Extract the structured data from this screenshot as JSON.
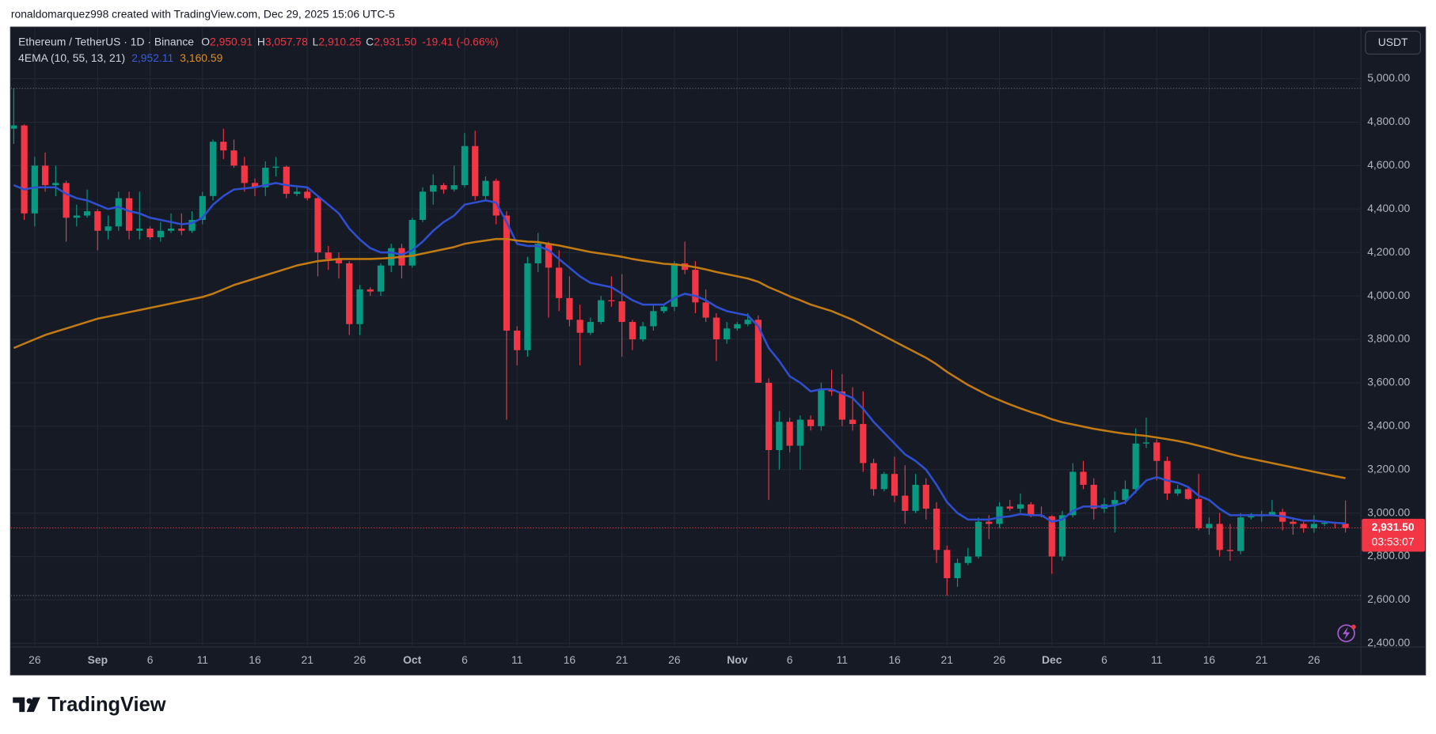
{
  "header": {
    "credit": "ronaldomarquez998 created with TradingView.com, Dec 29, 2025 15:06 UTC-5"
  },
  "legend": {
    "symbol": "Ethereum / TetherUS · 1D · Binance",
    "o_label": "O",
    "o": "2,950.91",
    "h_label": "H",
    "h": "3,057.78",
    "l_label": "L",
    "l": "2,910.25",
    "c_label": "C",
    "c": "2,931.50",
    "change": "-19.41 (-0.66%)",
    "indicator": "4EMA (10, 55, 13, 21)"
  },
  "currency": "USDT",
  "countdown": "03:53:07",
  "footer": {
    "logo": "TradingView"
  },
  "chart_data": {
    "type": "candlestick",
    "up_color": "#089981",
    "down_color": "#f23645",
    "grid": true,
    "last_price": {
      "value": 2931.5,
      "label": "2,931.50"
    },
    "ylim": [
      2383,
      5236
    ],
    "yticks": [
      {
        "value": 2400,
        "label": "2,400.00"
      },
      {
        "value": 2600,
        "label": "2,600.00"
      },
      {
        "value": 2800,
        "label": "2,800.00"
      },
      {
        "value": 3000,
        "label": "3,000.00"
      },
      {
        "value": 3200,
        "label": "3,200.00"
      },
      {
        "value": 3400,
        "label": "3,400.00"
      },
      {
        "value": 3600,
        "label": "3,600.00"
      },
      {
        "value": 3800,
        "label": "3,800.00"
      },
      {
        "value": 4000,
        "label": "4,000.00"
      },
      {
        "value": 4200,
        "label": "4,200.00"
      },
      {
        "value": 4400,
        "label": "4,400.00"
      },
      {
        "value": 4600,
        "label": "4,600.00"
      },
      {
        "value": 4800,
        "label": "4,800.00"
      },
      {
        "value": 5000,
        "label": "5,000.00"
      }
    ],
    "categories": [
      null,
      null,
      "26",
      null,
      null,
      null,
      null,
      null,
      "Sep",
      null,
      null,
      null,
      null,
      "6",
      null,
      null,
      null,
      null,
      "11",
      null,
      null,
      null,
      null,
      "16",
      null,
      null,
      null,
      null,
      "21",
      null,
      null,
      null,
      null,
      "26",
      null,
      null,
      null,
      null,
      "Oct",
      null,
      null,
      null,
      null,
      "6",
      null,
      null,
      null,
      null,
      "11",
      null,
      null,
      null,
      null,
      "16",
      null,
      null,
      null,
      null,
      "21",
      null,
      null,
      null,
      null,
      "26",
      null,
      null,
      null,
      null,
      null,
      "Nov",
      null,
      null,
      null,
      null,
      "6",
      null,
      null,
      null,
      null,
      "11",
      null,
      null,
      null,
      null,
      "16",
      null,
      null,
      null,
      null,
      "21",
      null,
      null,
      null,
      null,
      "26",
      null,
      null,
      null,
      null,
      "Dec",
      null,
      null,
      null,
      null,
      "6",
      null,
      null,
      null,
      null,
      "11",
      null,
      null,
      null,
      null,
      "16",
      null,
      null,
      null,
      null,
      "21",
      null,
      null,
      null,
      null,
      "26",
      null,
      null,
      null
    ],
    "open": [
      4770,
      4785,
      4380,
      4600,
      4510,
      4520,
      4360,
      4370,
      4390,
      4300,
      4320,
      4450,
      4300,
      4310,
      4270,
      4300,
      4310,
      4300,
      4350,
      4460,
      4710,
      4670,
      4600,
      4520,
      4500,
      4590,
      4595,
      4470,
      4480,
      4450,
      4200,
      4170,
      4150,
      3870,
      4030,
      4020,
      4140,
      4220,
      4140,
      4350,
      4480,
      4510,
      4490,
      4510,
      4690,
      4460,
      4530,
      4370,
      3840,
      3750,
      4150,
      4240,
      4130,
      3990,
      3890,
      3830,
      3880,
      3980,
      3975,
      3880,
      3800,
      3860,
      3930,
      3950,
      4150,
      4120,
      3970,
      3900,
      3800,
      3850,
      3870,
      3890,
      3600,
      3290,
      3420,
      3310,
      3430,
      3400,
      3570,
      3560,
      3430,
      3410,
      3230,
      3110,
      3180,
      3080,
      3010,
      3130,
      3020,
      2830,
      2700,
      2770,
      2800,
      2960,
      2950,
      3030,
      3020,
      3040,
      2990,
      2985,
      2800,
      2990,
      3190,
      3130,
      3020,
      3040,
      3060,
      3110,
      3320,
      3325,
      3240,
      3090,
      3110,
      3065,
      2930,
      2950,
      2830,
      2825,
      2980,
      2985,
      2990,
      3005,
      2960,
      2950,
      2930,
      2950,
      2955,
      2950.91
    ],
    "high": [
      4956,
      4790,
      4640,
      4660,
      4600,
      4530,
      4420,
      4490,
      4400,
      4370,
      4480,
      4480,
      4480,
      4320,
      4340,
      4380,
      4380,
      4390,
      4480,
      4720,
      4770,
      4720,
      4640,
      4540,
      4620,
      4640,
      4600,
      4500,
      4500,
      4460,
      4230,
      4200,
      4160,
      4050,
      4040,
      4150,
      4240,
      4240,
      4360,
      4500,
      4560,
      4520,
      4600,
      4750,
      4760,
      4550,
      4540,
      4390,
      3860,
      4180,
      4290,
      4250,
      4210,
      4090,
      3960,
      3900,
      4000,
      4090,
      4100,
      3890,
      3880,
      3960,
      3960,
      4160,
      4250,
      4160,
      4030,
      3920,
      3880,
      3880,
      3920,
      3910,
      3620,
      3470,
      3440,
      3450,
      3450,
      3600,
      3660,
      3640,
      3580,
      3560,
      3250,
      3190,
      3260,
      3220,
      3180,
      3160,
      3050,
      2850,
      2790,
      2840,
      2980,
      2990,
      3050,
      3060,
      3090,
      3050,
      3030,
      2990,
      3010,
      3230,
      3240,
      3160,
      3070,
      3100,
      3150,
      3390,
      3440,
      3340,
      3260,
      3130,
      3120,
      3180,
      2980,
      3000,
      2950,
      3000,
      3000,
      3010,
      3060,
      3020,
      2980,
      2960,
      2990,
      2960,
      2960,
      3057.78
    ],
    "low": [
      4700,
      4350,
      4320,
      4480,
      4460,
      4250,
      4320,
      4360,
      4210,
      4260,
      4300,
      4260,
      4260,
      4260,
      4250,
      4290,
      4280,
      4290,
      4330,
      4440,
      4630,
      4590,
      4480,
      4460,
      4460,
      4550,
      4450,
      4460,
      4440,
      4090,
      4120,
      4080,
      3820,
      3820,
      4000,
      4000,
      4110,
      4080,
      4130,
      4340,
      4420,
      4470,
      4480,
      4500,
      4440,
      4440,
      4330,
      3430,
      3680,
      3720,
      4110,
      3900,
      3930,
      3860,
      3680,
      3820,
      3870,
      3950,
      3720,
      3750,
      3790,
      3840,
      3920,
      3930,
      4100,
      3920,
      3880,
      3700,
      3780,
      3840,
      3860,
      3600,
      3060,
      3200,
      3280,
      3200,
      3380,
      3380,
      3540,
      3400,
      3380,
      3190,
      3080,
      3100,
      3050,
      2950,
      3000,
      2970,
      2770,
      2620,
      2660,
      2760,
      2790,
      2880,
      2930,
      3010,
      3000,
      2980,
      2980,
      2720,
      2780,
      2980,
      3110,
      2970,
      3000,
      2910,
      3040,
      3090,
      3300,
      3150,
      3060,
      3080,
      3060,
      2920,
      2900,
      2800,
      2780,
      2810,
      2970,
      2960,
      2990,
      2920,
      2900,
      2910,
      2910,
      2940,
      2930,
      2910.25
    ],
    "close": [
      4785,
      4380,
      4600,
      4510,
      4520,
      4360,
      4370,
      4390,
      4300,
      4320,
      4450,
      4300,
      4310,
      4270,
      4300,
      4310,
      4300,
      4350,
      4460,
      4710,
      4670,
      4600,
      4520,
      4500,
      4590,
      4595,
      4470,
      4480,
      4450,
      4200,
      4170,
      4150,
      3870,
      4030,
      4020,
      4140,
      4220,
      4140,
      4350,
      4480,
      4510,
      4490,
      4510,
      4690,
      4460,
      4530,
      4370,
      3840,
      3750,
      4150,
      4240,
      4130,
      3990,
      3890,
      3830,
      3880,
      3980,
      3975,
      3880,
      3800,
      3860,
      3930,
      3950,
      4150,
      4120,
      3970,
      3900,
      3800,
      3850,
      3870,
      3890,
      3600,
      3290,
      3420,
      3310,
      3430,
      3400,
      3570,
      3560,
      3430,
      3410,
      3230,
      3110,
      3180,
      3080,
      3010,
      3130,
      3020,
      2830,
      2700,
      2770,
      2800,
      2960,
      2950,
      3030,
      3020,
      3040,
      2990,
      2985,
      2800,
      2990,
      3190,
      3130,
      3020,
      3040,
      3060,
      3110,
      3320,
      3325,
      3240,
      3090,
      3110,
      3065,
      2930,
      2950,
      2830,
      2825,
      2980,
      2985,
      2990,
      3005,
      2960,
      2950,
      2930,
      2950,
      2955,
      2950.91,
      2931.5
    ],
    "ema_series": [
      {
        "color": "#2f4fd0",
        "legend_value": "2,952.11",
        "values": [
          4510,
          4490,
          4500,
          4500,
          4500,
          4470,
          4450,
          4440,
          4420,
          4400,
          4410,
          4390,
          4380,
          4360,
          4350,
          4340,
          4330,
          4335,
          4360,
          4420,
          4460,
          4490,
          4495,
          4500,
          4510,
          4520,
          4510,
          4505,
          4500,
          4460,
          4420,
          4380,
          4310,
          4260,
          4220,
          4200,
          4200,
          4190,
          4210,
          4250,
          4300,
          4340,
          4370,
          4420,
          4430,
          4440,
          4430,
          4340,
          4240,
          4230,
          4230,
          4210,
          4170,
          4130,
          4090,
          4060,
          4050,
          4040,
          4010,
          3980,
          3960,
          3960,
          3960,
          3990,
          4010,
          4000,
          3980,
          3950,
          3930,
          3920,
          3910,
          3860,
          3760,
          3700,
          3630,
          3600,
          3560,
          3570,
          3570,
          3550,
          3530,
          3480,
          3420,
          3370,
          3320,
          3270,
          3240,
          3200,
          3130,
          3050,
          3000,
          2970,
          2970,
          2970,
          2980,
          2985,
          2995,
          2990,
          2990,
          2960,
          2970,
          3010,
          3030,
          3030,
          3030,
          3035,
          3050,
          3100,
          3150,
          3165,
          3150,
          3140,
          3120,
          3080,
          3060,
          3020,
          2990,
          2990,
          2990,
          2990,
          2990,
          2985,
          2975,
          2965,
          2965,
          2960,
          2955,
          2952.11
        ]
      },
      {
        "color": "#c27a12",
        "legend_value": "3,160.59",
        "values": [
          3760,
          3780,
          3800,
          3820,
          3835,
          3850,
          3865,
          3880,
          3895,
          3905,
          3915,
          3925,
          3935,
          3945,
          3955,
          3965,
          3975,
          3985,
          3995,
          4010,
          4030,
          4050,
          4065,
          4080,
          4095,
          4110,
          4125,
          4140,
          4150,
          4160,
          4165,
          4170,
          4170,
          4170,
          4170,
          4172,
          4175,
          4180,
          4185,
          4195,
          4205,
          4215,
          4225,
          4240,
          4248,
          4255,
          4262,
          4262,
          4255,
          4250,
          4248,
          4240,
          4232,
          4222,
          4212,
          4202,
          4195,
          4188,
          4180,
          4170,
          4162,
          4155,
          4148,
          4145,
          4140,
          4132,
          4122,
          4110,
          4100,
          4090,
          4080,
          4065,
          4040,
          4020,
          3998,
          3980,
          3960,
          3945,
          3930,
          3910,
          3890,
          3865,
          3840,
          3815,
          3790,
          3765,
          3740,
          3715,
          3685,
          3650,
          3620,
          3590,
          3565,
          3540,
          3520,
          3500,
          3482,
          3465,
          3450,
          3432,
          3418,
          3408,
          3398,
          3388,
          3380,
          3372,
          3365,
          3360,
          3355,
          3348,
          3340,
          3332,
          3322,
          3310,
          3298,
          3285,
          3272,
          3260,
          3250,
          3240,
          3230,
          3220,
          3210,
          3200,
          3190,
          3180,
          3170,
          3160.59
        ]
      }
    ]
  }
}
